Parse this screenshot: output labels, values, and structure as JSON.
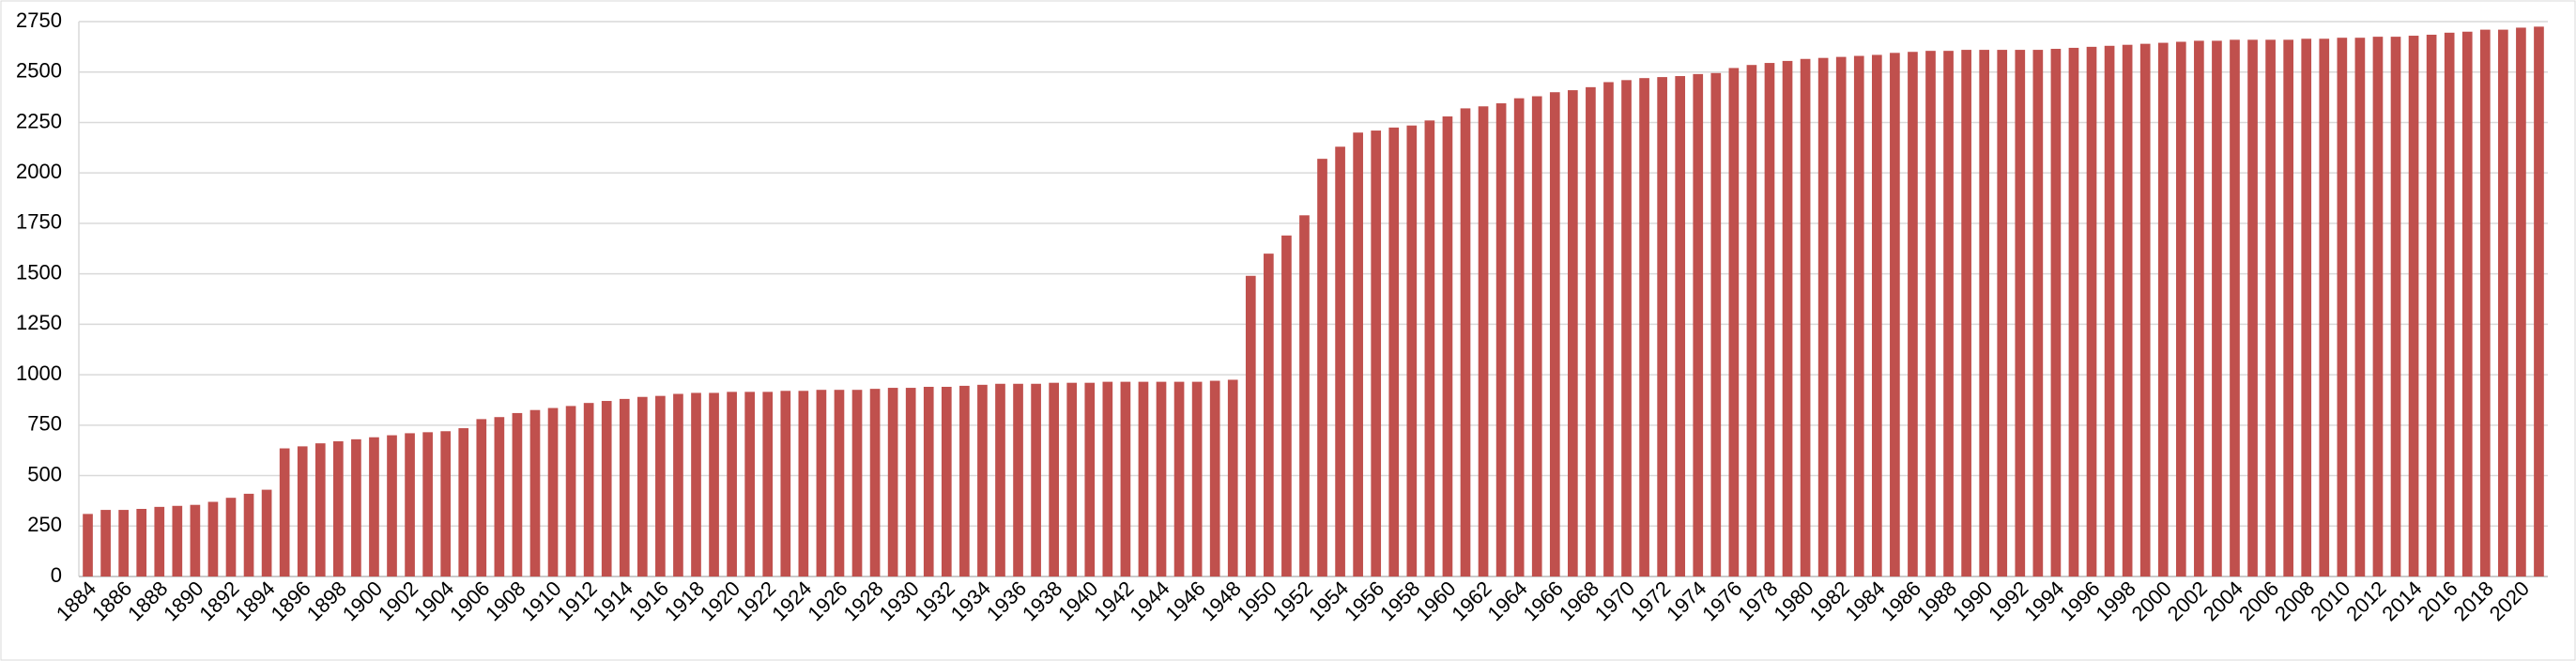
{
  "chart_data": {
    "type": "bar",
    "categories": [
      "1884",
      null,
      "1886",
      null,
      "1888",
      null,
      "1890",
      null,
      "1892",
      null,
      "1894",
      null,
      "1896",
      null,
      "1898",
      null,
      "1900",
      null,
      "1902",
      null,
      "1904",
      null,
      "1906",
      null,
      "1908",
      null,
      "1910",
      null,
      "1912",
      null,
      "1914",
      null,
      "1916",
      null,
      "1918",
      null,
      "1920",
      null,
      "1922",
      null,
      "1924",
      null,
      "1926",
      null,
      "1928",
      null,
      "1930",
      null,
      "1932",
      null,
      "1934",
      null,
      "1936",
      null,
      "1938",
      null,
      "1940",
      null,
      "1942",
      null,
      "1944",
      null,
      "1946",
      null,
      "1948",
      null,
      "1950",
      null,
      "1952",
      null,
      "1954",
      null,
      "1956",
      null,
      "1958",
      null,
      "1960",
      null,
      "1962",
      null,
      "1964",
      null,
      "1966",
      null,
      "1968",
      null,
      "1970",
      null,
      "1972",
      null,
      "1974",
      null,
      "1976",
      null,
      "1978",
      null,
      "1980",
      null,
      "1982",
      null,
      "1984",
      null,
      "1986",
      null,
      "1988",
      null,
      "1990",
      null,
      "1992",
      null,
      "1994",
      null,
      "1996",
      null,
      "1998",
      null,
      "2000",
      null,
      "2002",
      null,
      "2004",
      null,
      "2006",
      null,
      "2008",
      null,
      "2010",
      null,
      "2012",
      null,
      "2014",
      null,
      "2016",
      null,
      "2018",
      null,
      "2020",
      null
    ],
    "values": [
      310,
      330,
      330,
      335,
      345,
      350,
      355,
      370,
      390,
      410,
      430,
      635,
      645,
      660,
      670,
      680,
      690,
      700,
      710,
      715,
      720,
      735,
      780,
      790,
      810,
      825,
      835,
      845,
      860,
      870,
      880,
      890,
      895,
      905,
      910,
      910,
      915,
      915,
      915,
      920,
      920,
      925,
      925,
      925,
      930,
      935,
      935,
      940,
      940,
      945,
      950,
      955,
      955,
      955,
      960,
      960,
      960,
      965,
      965,
      965,
      965,
      965,
      965,
      970,
      975,
      1490,
      1600,
      1690,
      1790,
      2070,
      2130,
      2200,
      2210,
      2225,
      2235,
      2260,
      2280,
      2320,
      2330,
      2345,
      2370,
      2380,
      2400,
      2410,
      2425,
      2450,
      2460,
      2470,
      2475,
      2480,
      2490,
      2495,
      2520,
      2535,
      2545,
      2555,
      2565,
      2570,
      2575,
      2580,
      2585,
      2595,
      2600,
      2605,
      2605,
      2610,
      2610,
      2610,
      2610,
      2610,
      2615,
      2620,
      2625,
      2630,
      2635,
      2640,
      2645,
      2650,
      2655,
      2655,
      2660,
      2660,
      2660,
      2660,
      2665,
      2665,
      2670,
      2670,
      2675,
      2675,
      2680,
      2685,
      2695,
      2700,
      2710,
      2710,
      2720,
      2725
    ],
    "color": "#c0504d",
    "ylim": [
      0,
      2750
    ],
    "yticks": [
      0,
      250,
      500,
      750,
      1000,
      1250,
      1500,
      1750,
      2000,
      2250,
      2500,
      2750
    ],
    "grid": true
  }
}
